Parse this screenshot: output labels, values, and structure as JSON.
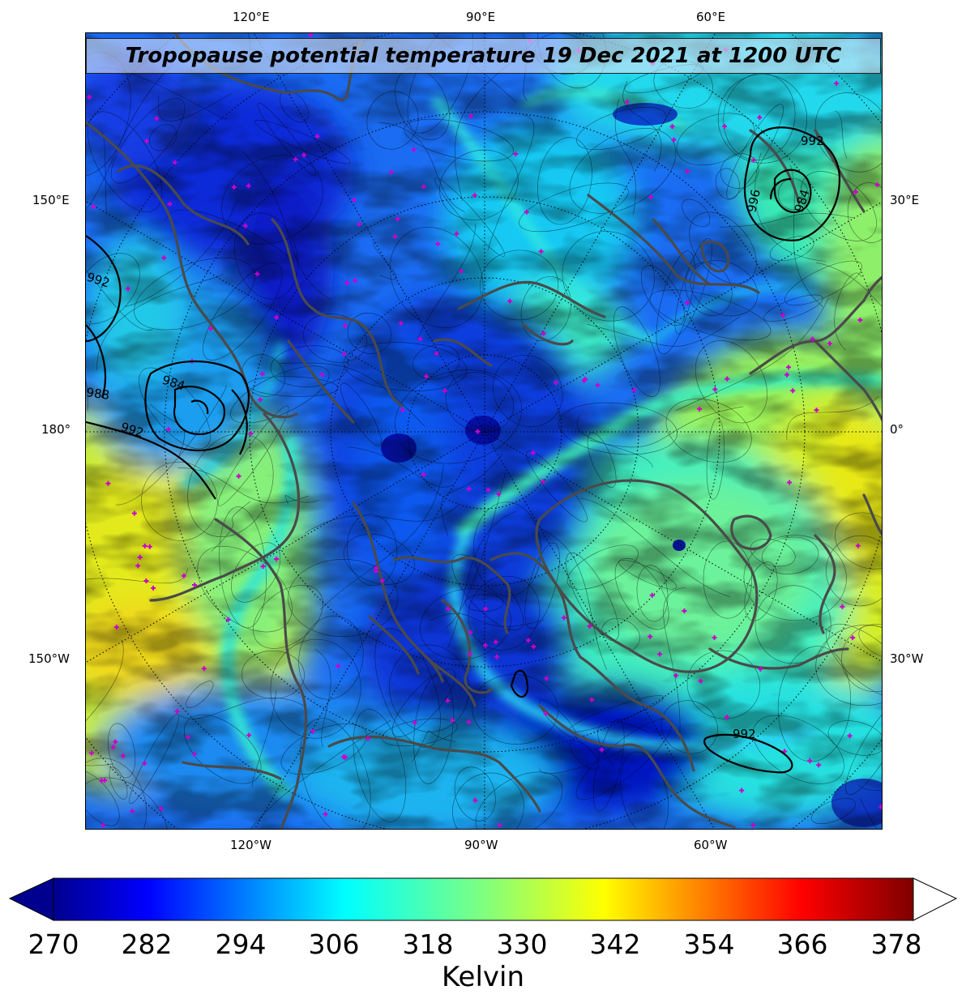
{
  "title": "Tropopause potential temperature 19 Dec 2021 at 1200 UTC",
  "map": {
    "projection": "north polar stereographic",
    "field": "tropopause potential temperature",
    "contour_lines": "thin black isentropes",
    "pressure_isobars": [
      {
        "label": "992",
        "region": "upper-right (Scandinavia/Russia)"
      },
      {
        "label": "984",
        "region": "upper-right (Scandinavia/Russia)"
      },
      {
        "label": "996",
        "region": "upper-right (Scandinavia/Russia)"
      },
      {
        "label": "992",
        "region": "left edge (North Pacific)"
      },
      {
        "label": "984",
        "region": "left (Bering Sea)"
      },
      {
        "label": "988",
        "region": "left edge (North Pacific)"
      },
      {
        "label": "992",
        "region": "left (Aleutians)"
      },
      {
        "label": "992",
        "region": "lower-right (Labrador Sea / Atlantic)"
      }
    ],
    "top_lon_labels": [
      "120°E",
      "90°E",
      "60°E"
    ],
    "bottom_lon_labels": [
      "120°W",
      "90°W",
      "60°W"
    ],
    "left_lon_labels": [
      "150°E",
      "180°",
      "150°W"
    ],
    "right_lon_labels": [
      "30°E",
      "0°",
      "30°W"
    ],
    "colors": {
      "coastline": "#4a4a4a",
      "station_marker": "#cc00cc",
      "contour": "#000000",
      "graticule": "#000000"
    }
  },
  "colorbar": {
    "ticks": [
      "270",
      "282",
      "294",
      "306",
      "318",
      "330",
      "342",
      "354",
      "366",
      "378"
    ],
    "label": "Kelvin",
    "min": 270,
    "max": 381,
    "colormap": "jet",
    "extend": "both"
  }
}
